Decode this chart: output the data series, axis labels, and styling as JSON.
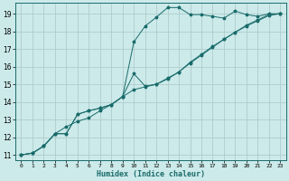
{
  "xlabel": "Humidex (Indice chaleur)",
  "bg_color": "#cceaea",
  "grid_color": "#b0cccc",
  "line_color": "#1a6b6b",
  "xlim": [
    -0.5,
    23.5
  ],
  "ylim": [
    10.7,
    19.6
  ],
  "xticks": [
    0,
    1,
    2,
    3,
    4,
    5,
    6,
    7,
    8,
    9,
    10,
    11,
    12,
    13,
    14,
    15,
    16,
    17,
    18,
    19,
    20,
    21,
    22,
    23
  ],
  "yticks": [
    11,
    12,
    13,
    14,
    15,
    16,
    17,
    18,
    19
  ],
  "line1_x": [
    0,
    1,
    2,
    3,
    4,
    5,
    6,
    7,
    8,
    9,
    10,
    11,
    12,
    13,
    14,
    15,
    16,
    17,
    18,
    19,
    20,
    21,
    22,
    23
  ],
  "line1_y": [
    11.0,
    11.1,
    11.5,
    12.2,
    12.2,
    13.3,
    13.5,
    13.65,
    13.85,
    14.3,
    17.4,
    18.3,
    18.8,
    19.35,
    19.35,
    18.95,
    18.95,
    18.85,
    18.75,
    19.15,
    18.95,
    18.85,
    19.0,
    19.0
  ],
  "line2_x": [
    0,
    1,
    2,
    3,
    4,
    5,
    6,
    7,
    8,
    9,
    10,
    11,
    12,
    13,
    14,
    15,
    16,
    17,
    18,
    19,
    20,
    21,
    22,
    23
  ],
  "line2_y": [
    11.0,
    11.1,
    11.5,
    12.2,
    12.2,
    13.3,
    13.5,
    13.65,
    13.85,
    14.3,
    14.7,
    14.85,
    15.0,
    15.3,
    15.7,
    16.2,
    16.65,
    17.1,
    17.55,
    17.95,
    18.3,
    18.6,
    18.9,
    19.0
  ],
  "line3_x": [
    0,
    1,
    2,
    3,
    4,
    5,
    6,
    7,
    8,
    9,
    10,
    11,
    12,
    13,
    14,
    15,
    16,
    17,
    18,
    19,
    20,
    21,
    22,
    23
  ],
  "line3_y": [
    11.0,
    11.1,
    11.5,
    12.2,
    12.6,
    12.9,
    13.1,
    13.5,
    13.85,
    14.3,
    15.6,
    14.9,
    15.0,
    15.35,
    15.7,
    16.25,
    16.7,
    17.15,
    17.55,
    17.95,
    18.35,
    18.65,
    18.95,
    19.0
  ],
  "marker_size": 2.5,
  "linewidth": 0.7
}
